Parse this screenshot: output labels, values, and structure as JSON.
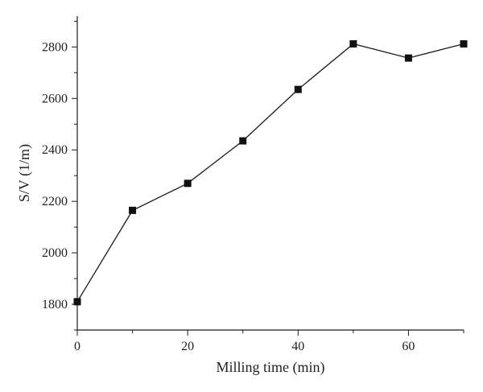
{
  "chart_data": {
    "type": "line",
    "title": "",
    "xlabel": "Milling time (min)",
    "ylabel": "S/V (1/m)",
    "xlim": [
      0,
      70
    ],
    "ylim": [
      1700,
      2920
    ],
    "xticks": [
      0,
      20,
      40,
      60
    ],
    "yticks": [
      1800,
      2000,
      2200,
      2400,
      2600,
      2800
    ],
    "grid": false,
    "marker": "square",
    "colors": {
      "line": "#1a1a1a",
      "marker": "#111111",
      "axis": "#1a1a1a"
    },
    "series": [
      {
        "x": [
          0,
          10,
          20,
          30,
          40,
          50,
          60,
          70
        ],
        "values": [
          1810,
          2165,
          2270,
          2435,
          2635,
          2812,
          2757,
          2812
        ]
      }
    ]
  }
}
